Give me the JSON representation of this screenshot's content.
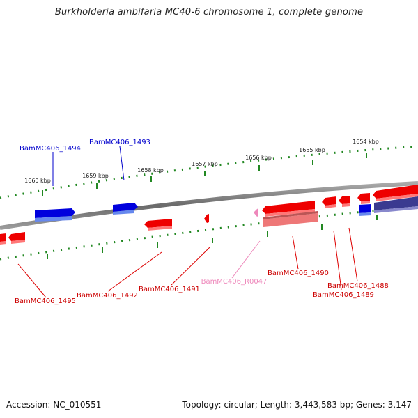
{
  "title": "Burkholderia ambifaria MC40-6 chromosome 1, complete genome",
  "footer": {
    "accession": "Accession: NC_010551",
    "summary": "Topology: circular; Length: 3,443,583 bp; Genes: 3,147"
  },
  "scale_labels": [
    "1660 kbp",
    "1659 kbp",
    "1658 kbp",
    "1657 kbp",
    "1656 kbp",
    "1655 kbp",
    "1654 kbp"
  ],
  "gene_labels": {
    "g1494": "BamMC406_1494",
    "g1493": "BamMC406_1493",
    "g1495": "BamMC406_1495",
    "g1492": "BamMC406_1492",
    "g1491": "BamMC406_1491",
    "gR0047": "BamMC406_R0047",
    "g1490": "BamMC406_1490",
    "g1488": "BamMC406_1488",
    "g1489": "BamMC406_1489"
  },
  "colors": {
    "forward_gene": "#0000dd",
    "reverse_gene": "#ee0000",
    "rna_gene": "#ee88bb",
    "backbone": "#808080",
    "tick": "#228822"
  }
}
